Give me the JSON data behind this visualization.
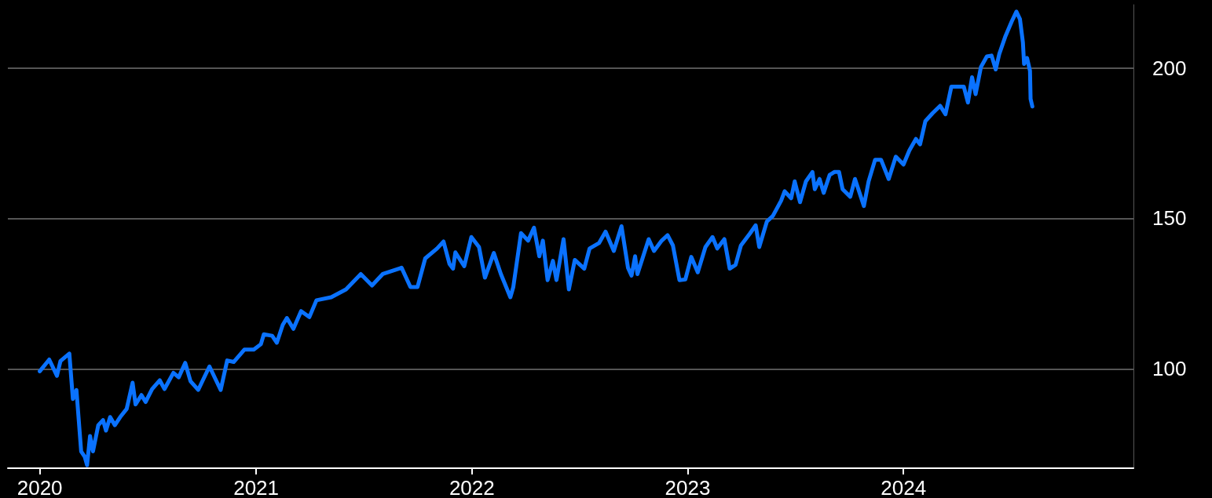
{
  "chart_data": {
    "type": "line",
    "xlim": [
      "2019-11-08",
      "2025-01-24"
    ],
    "xticks": [
      "2020",
      "2021",
      "2022",
      "2023",
      "2024"
    ],
    "ylim": [
      67,
      221
    ],
    "yticks": [
      100,
      150,
      200
    ],
    "grid": "y",
    "marker": "none",
    "line_style": "solid",
    "x": [
      "2020-01-01",
      "2020-01-17",
      "2020-01-30",
      "2020-02-05",
      "2020-02-20",
      "2020-02-26",
      "2020-03-03",
      "2020-03-11",
      "2020-03-17",
      "2020-03-21",
      "2020-03-26",
      "2020-03-31",
      "2020-04-09",
      "2020-04-17",
      "2020-04-22",
      "2020-04-29",
      "2020-05-07",
      "2020-05-16",
      "2020-05-27",
      "2020-06-06",
      "2020-06-11",
      "2020-06-21",
      "2020-06-28",
      "2020-07-09",
      "2020-07-22",
      "2020-07-30",
      "2020-08-14",
      "2020-08-23",
      "2020-09-03",
      "2020-09-12",
      "2020-09-25",
      "2020-10-14",
      "2020-11-02",
      "2020-11-13",
      "2020-11-24",
      "2020-12-12",
      "2020-12-28",
      "2021-01-09",
      "2021-01-14",
      "2021-01-28",
      "2021-02-05",
      "2021-02-15",
      "2021-02-22",
      "2021-03-05",
      "2021-03-18",
      "2021-04-01",
      "2021-04-13",
      "2021-05-08",
      "2021-06-02",
      "2021-06-27",
      "2021-07-16",
      "2021-08-03",
      "2021-09-04",
      "2021-09-19",
      "2021-10-01",
      "2021-10-14",
      "2021-11-03",
      "2021-11-14",
      "2021-11-24",
      "2021-11-30",
      "2021-12-04",
      "2021-12-19",
      "2021-12-31",
      "2022-01-13",
      "2022-01-23",
      "2022-02-07",
      "2022-02-19",
      "2022-03-07",
      "2022-03-12",
      "2022-03-25",
      "2022-04-06",
      "2022-04-16",
      "2022-04-25",
      "2022-05-01",
      "2022-05-09",
      "2022-05-18",
      "2022-05-24",
      "2022-06-05",
      "2022-06-14",
      "2022-06-24",
      "2022-07-10",
      "2022-07-19",
      "2022-08-04",
      "2022-08-15",
      "2022-08-29",
      "2022-09-11",
      "2022-09-22",
      "2022-09-28",
      "2022-10-04",
      "2022-10-08",
      "2022-10-27",
      "2022-11-05",
      "2022-11-18",
      "2022-11-28",
      "2022-12-07",
      "2022-12-18",
      "2022-12-28",
      "2023-01-07",
      "2023-01-18",
      "2023-01-31",
      "2023-02-12",
      "2023-02-20",
      "2023-03-04",
      "2023-03-13",
      "2023-03-23",
      "2023-04-01",
      "2023-04-16",
      "2023-04-26",
      "2023-05-02",
      "2023-05-15",
      "2023-05-25",
      "2023-06-08",
      "2023-06-14",
      "2023-06-25",
      "2023-07-01",
      "2023-07-10",
      "2023-07-20",
      "2023-07-31",
      "2023-08-04",
      "2023-08-12",
      "2023-08-19",
      "2023-08-29",
      "2023-09-06",
      "2023-09-14",
      "2023-09-20",
      "2023-10-03",
      "2023-10-11",
      "2023-10-26",
      "2023-11-03",
      "2023-11-14",
      "2023-11-24",
      "2023-12-07",
      "2023-12-19",
      "2024-01-01",
      "2024-01-11",
      "2024-01-22",
      "2024-01-29",
      "2024-02-07",
      "2024-02-19",
      "2024-03-03",
      "2024-03-12",
      "2024-03-22",
      "2024-04-03",
      "2024-04-12",
      "2024-04-19",
      "2024-04-26",
      "2024-05-02",
      "2024-05-11",
      "2024-05-21",
      "2024-05-29",
      "2024-06-05",
      "2024-06-11",
      "2024-06-21",
      "2024-07-02",
      "2024-07-10",
      "2024-07-16",
      "2024-07-21",
      "2024-07-23",
      "2024-07-28",
      "2024-08-02",
      "2024-08-03",
      "2024-08-06"
    ],
    "series": [
      {
        "color": "#0a72ff",
        "values": [
          99.2,
          103.1,
          97.7,
          102.6,
          105.1,
          90,
          93,
          72.6,
          70.8,
          68,
          77.7,
          72.6,
          81.3,
          83,
          79.5,
          84,
          81.3,
          84,
          86.7,
          95.4,
          88.2,
          91.3,
          89,
          93.3,
          96.2,
          93.3,
          98.7,
          97.2,
          102,
          95.9,
          93,
          100.8,
          93,
          102.8,
          102.3,
          106.4,
          106.4,
          108.2,
          111.5,
          111,
          108.7,
          114.6,
          116.9,
          113.3,
          119.2,
          117.2,
          122.8,
          123.8,
          126.4,
          131.5,
          127.7,
          131.5,
          133.6,
          127.2,
          127.2,
          136.7,
          140,
          142.3,
          134.9,
          133.3,
          138.7,
          134.1,
          143.8,
          140.5,
          130.3,
          138.5,
          131.5,
          123.8,
          127.2,
          145.1,
          142.6,
          146.9,
          137.4,
          142.6,
          129.5,
          135.9,
          129.5,
          143.1,
          126.4,
          136.2,
          133.3,
          140,
          141.8,
          145.6,
          139.2,
          147.4,
          133.6,
          131,
          137.4,
          131.5,
          143.1,
          139.2,
          142.6,
          144.4,
          141,
          129.5,
          129.7,
          137.2,
          132.1,
          140.5,
          143.8,
          140,
          143.1,
          133.3,
          134.6,
          141,
          144.9,
          147.7,
          140.5,
          149,
          150.8,
          155.9,
          159,
          156.7,
          162.3,
          155.4,
          162.3,
          165.4,
          159.7,
          163.1,
          158.5,
          164.4,
          165.4,
          165.4,
          159.7,
          157.2,
          163.1,
          154.1,
          162.3,
          169.5,
          169.5,
          163.1,
          170.5,
          167.9,
          172.6,
          176.4,
          174.6,
          182.3,
          184.9,
          187.4,
          184.6,
          193.8,
          193.8,
          193.8,
          188.5,
          196.9,
          191.3,
          200.3,
          203.8,
          204.1,
          199.5,
          204.6,
          210.3,
          215.4,
          218.7,
          216.2,
          208.5,
          201.3,
          203.3,
          199,
          189.7,
          187.2
        ]
      }
    ]
  }
}
